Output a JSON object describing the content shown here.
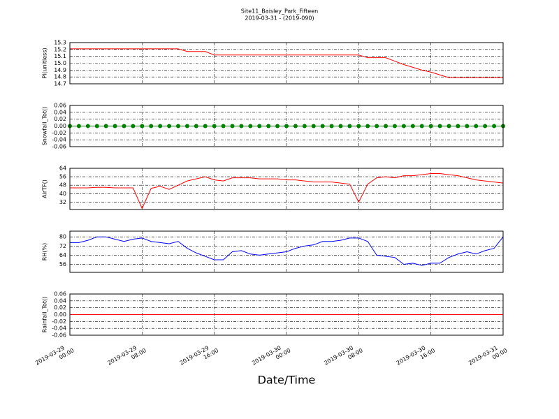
{
  "chart_data": [
    {
      "type": "line",
      "title": "Site11_Baisley_Park_Fifteen",
      "subtitle": "2019-03-31 - (2019-090)",
      "ylabel": "Pl(unitless)",
      "x": [
        "2019-03-29 00:00",
        "2019-03-29 01:00",
        "2019-03-29 02:00",
        "2019-03-29 03:00",
        "2019-03-29 04:00",
        "2019-03-29 05:00",
        "2019-03-29 06:00",
        "2019-03-29 07:00",
        "2019-03-29 08:00",
        "2019-03-29 09:00",
        "2019-03-29 10:00",
        "2019-03-29 11:00",
        "2019-03-29 12:00",
        "2019-03-29 13:00",
        "2019-03-29 14:00",
        "2019-03-29 15:00",
        "2019-03-29 16:00",
        "2019-03-29 17:00",
        "2019-03-29 18:00",
        "2019-03-29 19:00",
        "2019-03-29 20:00",
        "2019-03-29 21:00",
        "2019-03-29 22:00",
        "2019-03-29 23:00",
        "2019-03-30 00:00",
        "2019-03-30 01:00",
        "2019-03-30 02:00",
        "2019-03-30 03:00",
        "2019-03-30 04:00",
        "2019-03-30 05:00",
        "2019-03-30 06:00",
        "2019-03-30 07:00",
        "2019-03-30 08:00",
        "2019-03-30 09:00",
        "2019-03-30 10:00",
        "2019-03-30 11:00",
        "2019-03-30 12:00",
        "2019-03-30 13:00",
        "2019-03-30 14:00",
        "2019-03-30 15:00",
        "2019-03-30 16:00",
        "2019-03-30 17:00",
        "2019-03-30 18:00",
        "2019-03-30 19:00",
        "2019-03-30 20:00",
        "2019-03-30 21:00",
        "2019-03-30 22:00",
        "2019-03-30 23:00",
        "2019-03-31 00:00"
      ],
      "xlim": [
        "2019-03-29 00:00",
        "2019-03-31 00:00"
      ],
      "series": [
        {
          "color": "#ff0000",
          "values": [
            15.21,
            15.21,
            15.21,
            15.21,
            15.21,
            15.21,
            15.21,
            15.21,
            15.21,
            15.21,
            15.21,
            15.21,
            15.21,
            15.17,
            15.17,
            15.17,
            15.12,
            15.12,
            15.12,
            15.12,
            15.12,
            15.12,
            15.12,
            15.12,
            15.12,
            15.12,
            15.12,
            15.12,
            15.12,
            15.12,
            15.12,
            15.12,
            15.12,
            15.08,
            15.08,
            15.08,
            15.03,
            14.98,
            14.94,
            14.9,
            14.87,
            14.83,
            14.79,
            14.79,
            14.79,
            14.79,
            14.79,
            14.79,
            14.79
          ]
        }
      ],
      "ylim": [
        14.7,
        15.3
      ],
      "yticks": [
        {
          "value": 14.7,
          "label": "14.7"
        },
        14.8,
        14.9,
        {
          "value": 15,
          "label": "15.0"
        },
        15.1,
        15.2,
        15.3
      ],
      "grid": true
    },
    {
      "type": "line",
      "ylabel": "Snowfall_Tot()",
      "x": [
        "2019-03-29 00:00",
        "2019-03-29 01:00",
        "2019-03-29 02:00",
        "2019-03-29 03:00",
        "2019-03-29 04:00",
        "2019-03-29 05:00",
        "2019-03-29 06:00",
        "2019-03-29 07:00",
        "2019-03-29 08:00",
        "2019-03-29 09:00",
        "2019-03-29 10:00",
        "2019-03-29 11:00",
        "2019-03-29 12:00",
        "2019-03-29 13:00",
        "2019-03-29 14:00",
        "2019-03-29 15:00",
        "2019-03-29 16:00",
        "2019-03-29 17:00",
        "2019-03-29 18:00",
        "2019-03-29 19:00",
        "2019-03-29 20:00",
        "2019-03-29 21:00",
        "2019-03-29 22:00",
        "2019-03-29 23:00",
        "2019-03-30 00:00",
        "2019-03-30 01:00",
        "2019-03-30 02:00",
        "2019-03-30 03:00",
        "2019-03-30 04:00",
        "2019-03-30 05:00",
        "2019-03-30 06:00",
        "2019-03-30 07:00",
        "2019-03-30 08:00",
        "2019-03-30 09:00",
        "2019-03-30 10:00",
        "2019-03-30 11:00",
        "2019-03-30 12:00",
        "2019-03-30 13:00",
        "2019-03-30 14:00",
        "2019-03-30 15:00",
        "2019-03-30 16:00",
        "2019-03-30 17:00",
        "2019-03-30 18:00",
        "2019-03-30 19:00",
        "2019-03-30 20:00",
        "2019-03-30 21:00",
        "2019-03-30 22:00",
        "2019-03-30 23:00",
        "2019-03-31 00:00"
      ],
      "xlim": [
        "2019-03-29 00:00",
        "2019-03-31 00:00"
      ],
      "series": [
        {
          "color": "#008000",
          "marker": true,
          "values": [
            0,
            0,
            0,
            0,
            0,
            0,
            0,
            0,
            0,
            0,
            0,
            0,
            0,
            0,
            0,
            0,
            0,
            0,
            0,
            0,
            0,
            0,
            0,
            0,
            0,
            0,
            0,
            0,
            0,
            0,
            0,
            0,
            0,
            0,
            0,
            0,
            0,
            0,
            0,
            0,
            0,
            0,
            0,
            0,
            0,
            0,
            0,
            0,
            0
          ]
        }
      ],
      "ylim": [
        -0.06,
        0.06
      ],
      "yticks": [
        -0.06,
        -0.04,
        -0.02,
        {
          "value": 0,
          "label": "0.00"
        },
        0.02,
        0.04,
        0.06
      ],
      "grid": true
    },
    {
      "type": "line",
      "ylabel": "AirTF()",
      "x": [
        "2019-03-29 00:00",
        "2019-03-29 01:00",
        "2019-03-29 02:00",
        "2019-03-29 03:00",
        "2019-03-29 04:00",
        "2019-03-29 05:00",
        "2019-03-29 06:00",
        "2019-03-29 07:00",
        "2019-03-29 08:00",
        "2019-03-29 09:00",
        "2019-03-29 10:00",
        "2019-03-29 11:00",
        "2019-03-29 12:00",
        "2019-03-29 13:00",
        "2019-03-29 14:00",
        "2019-03-29 15:00",
        "2019-03-29 16:00",
        "2019-03-29 17:00",
        "2019-03-29 18:00",
        "2019-03-29 19:00",
        "2019-03-29 20:00",
        "2019-03-29 21:00",
        "2019-03-29 22:00",
        "2019-03-29 23:00",
        "2019-03-30 00:00",
        "2019-03-30 01:00",
        "2019-03-30 02:00",
        "2019-03-30 03:00",
        "2019-03-30 04:00",
        "2019-03-30 05:00",
        "2019-03-30 06:00",
        "2019-03-30 07:00",
        "2019-03-30 08:00",
        "2019-03-30 09:00",
        "2019-03-30 10:00",
        "2019-03-30 11:00",
        "2019-03-30 12:00",
        "2019-03-30 13:00",
        "2019-03-30 14:00",
        "2019-03-30 15:00",
        "2019-03-30 16:00",
        "2019-03-30 17:00",
        "2019-03-30 18:00",
        "2019-03-30 19:00",
        "2019-03-30 20:00",
        "2019-03-30 21:00",
        "2019-03-30 22:00",
        "2019-03-30 23:00",
        "2019-03-31 00:00"
      ],
      "xlim": [
        "2019-03-29 00:00",
        "2019-03-31 00:00"
      ],
      "series": [
        {
          "color": "#ff0000",
          "values": [
            45.5,
            45.5,
            45.5,
            46,
            46,
            45.5,
            45.5,
            45.5,
            26,
            45,
            47,
            44,
            48,
            52,
            54,
            56,
            53,
            52,
            55,
            55,
            55,
            54,
            54,
            54,
            53,
            53,
            52,
            51,
            51,
            51,
            50,
            49,
            32,
            49,
            55,
            56,
            55,
            57,
            57,
            58,
            59,
            59,
            58,
            57,
            55,
            53,
            52,
            51,
            50
          ]
        }
      ],
      "ylim": [
        25,
        64
      ],
      "yticks": [
        32,
        40,
        48,
        56,
        64
      ],
      "grid": true
    },
    {
      "type": "line",
      "ylabel": "RH(%)",
      "x": [
        "2019-03-29 00:00",
        "2019-03-29 01:00",
        "2019-03-29 02:00",
        "2019-03-29 03:00",
        "2019-03-29 04:00",
        "2019-03-29 05:00",
        "2019-03-29 06:00",
        "2019-03-29 07:00",
        "2019-03-29 08:00",
        "2019-03-29 09:00",
        "2019-03-29 10:00",
        "2019-03-29 11:00",
        "2019-03-29 12:00",
        "2019-03-29 13:00",
        "2019-03-29 14:00",
        "2019-03-29 15:00",
        "2019-03-29 16:00",
        "2019-03-29 17:00",
        "2019-03-29 18:00",
        "2019-03-29 19:00",
        "2019-03-29 20:00",
        "2019-03-29 21:00",
        "2019-03-29 22:00",
        "2019-03-29 23:00",
        "2019-03-30 00:00",
        "2019-03-30 01:00",
        "2019-03-30 02:00",
        "2019-03-30 03:00",
        "2019-03-30 04:00",
        "2019-03-30 05:00",
        "2019-03-30 06:00",
        "2019-03-30 07:00",
        "2019-03-30 08:00",
        "2019-03-30 09:00",
        "2019-03-30 10:00",
        "2019-03-30 11:00",
        "2019-03-30 12:00",
        "2019-03-30 13:00",
        "2019-03-30 14:00",
        "2019-03-30 15:00",
        "2019-03-30 16:00",
        "2019-03-30 17:00",
        "2019-03-30 18:00",
        "2019-03-30 19:00",
        "2019-03-30 20:00",
        "2019-03-30 21:00",
        "2019-03-30 22:00",
        "2019-03-30 23:00",
        "2019-03-31 00:00"
      ],
      "xlim": [
        "2019-03-29 00:00",
        "2019-03-31 00:00"
      ],
      "series": [
        {
          "color": "#0000ff",
          "values": [
            75,
            75,
            77,
            80,
            80,
            78,
            76,
            78,
            79,
            76,
            75,
            74,
            76,
            70,
            66,
            63,
            60,
            60,
            67,
            68,
            65,
            64,
            65,
            66,
            67,
            70,
            72,
            73,
            76,
            76,
            77,
            79,
            79,
            76,
            64,
            63,
            62,
            56,
            57,
            55,
            57,
            57,
            62,
            65,
            67,
            65,
            68,
            70,
            80
          ]
        }
      ],
      "ylim": [
        49,
        85
      ],
      "yticks": [
        56,
        64,
        72,
        80
      ],
      "grid": true
    },
    {
      "type": "line",
      "ylabel": "Rainfall_Tot()",
      "xlabel": "Date/Time",
      "x": [
        "2019-03-29 00:00",
        "2019-03-29 01:00",
        "2019-03-29 02:00",
        "2019-03-29 03:00",
        "2019-03-29 04:00",
        "2019-03-29 05:00",
        "2019-03-29 06:00",
        "2019-03-29 07:00",
        "2019-03-29 08:00",
        "2019-03-29 09:00",
        "2019-03-29 10:00",
        "2019-03-29 11:00",
        "2019-03-29 12:00",
        "2019-03-29 13:00",
        "2019-03-29 14:00",
        "2019-03-29 15:00",
        "2019-03-29 16:00",
        "2019-03-29 17:00",
        "2019-03-29 18:00",
        "2019-03-29 19:00",
        "2019-03-29 20:00",
        "2019-03-29 21:00",
        "2019-03-29 22:00",
        "2019-03-29 23:00",
        "2019-03-30 00:00",
        "2019-03-30 01:00",
        "2019-03-30 02:00",
        "2019-03-30 03:00",
        "2019-03-30 04:00",
        "2019-03-30 05:00",
        "2019-03-30 06:00",
        "2019-03-30 07:00",
        "2019-03-30 08:00",
        "2019-03-30 09:00",
        "2019-03-30 10:00",
        "2019-03-30 11:00",
        "2019-03-30 12:00",
        "2019-03-30 13:00",
        "2019-03-30 14:00",
        "2019-03-30 15:00",
        "2019-03-30 16:00",
        "2019-03-30 17:00",
        "2019-03-30 18:00",
        "2019-03-30 19:00",
        "2019-03-30 20:00",
        "2019-03-30 21:00",
        "2019-03-30 22:00",
        "2019-03-30 23:00",
        "2019-03-31 00:00"
      ],
      "xlim": [
        "2019-03-29 00:00",
        "2019-03-31 00:00"
      ],
      "xticks": [
        {
          "value": "2019-03-29 00:00",
          "label": "2019-03-29\n00:00"
        },
        {
          "value": "2019-03-29 08:00",
          "label": "2019-03-29\n08:00"
        },
        {
          "value": "2019-03-29 16:00",
          "label": "2019-03-29\n16:00"
        },
        {
          "value": "2019-03-30 00:00",
          "label": "2019-03-30\n00:00"
        },
        {
          "value": "2019-03-30 08:00",
          "label": "2019-03-30\n08:00"
        },
        {
          "value": "2019-03-30 16:00",
          "label": "2019-03-30\n16:00"
        },
        {
          "value": "2019-03-31 00:00",
          "label": "2019-03-31\n00:00"
        }
      ],
      "series": [
        {
          "color": "#ff0000",
          "values": [
            0,
            0,
            0,
            0,
            0,
            0,
            0,
            0,
            0,
            0,
            0,
            0,
            0,
            0,
            0,
            0,
            0,
            0,
            0,
            0,
            0,
            0,
            0,
            0,
            0,
            0,
            0,
            0,
            0,
            0,
            0,
            0,
            0,
            0,
            0,
            0,
            0,
            0,
            0,
            0,
            0,
            0,
            0,
            0,
            0,
            0,
            0,
            0,
            0
          ]
        }
      ],
      "ylim": [
        -0.06,
        0.06
      ],
      "yticks": [
        -0.06,
        -0.04,
        -0.02,
        {
          "value": 0,
          "label": "0.00"
        },
        0.02,
        0.04,
        0.06
      ],
      "grid": true
    }
  ]
}
